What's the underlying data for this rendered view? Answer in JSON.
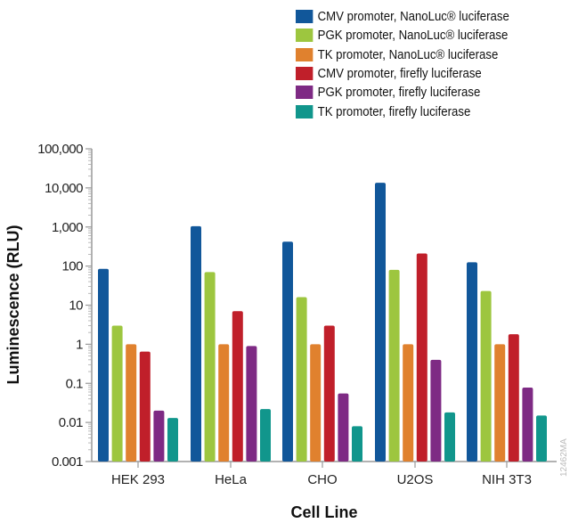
{
  "chart_data": {
    "type": "bar",
    "xlabel": "Cell Line",
    "ylabel": "Luminescence (RLU)",
    "yscale": "log",
    "ylim": [
      0.001,
      100000
    ],
    "yticks": [
      "0.001",
      "0.01",
      "0.1",
      "1",
      "10",
      "100",
      "1,000",
      "10,000",
      "100,000"
    ],
    "ytick_values": [
      0.001,
      0.01,
      0.1,
      1,
      10,
      100,
      1000,
      10000,
      100000
    ],
    "categories": [
      "HEK 293",
      "HeLa",
      "CHO",
      "U2OS",
      "NIH 3T3"
    ],
    "legend_position": "top-right",
    "grid": false,
    "series": [
      {
        "name": "CMV promoter, NanoLuc® luciferase",
        "color": "#11579a",
        "values": [
          85,
          1050,
          420,
          13500,
          125
        ]
      },
      {
        "name": "PGK promoter, NanoLuc® luciferase",
        "color": "#9dc63f",
        "values": [
          3,
          70,
          16,
          80,
          23
        ]
      },
      {
        "name": "TK promoter, NanoLuc® luciferase",
        "color": "#e0812e",
        "values": [
          1,
          1,
          1,
          1,
          1
        ]
      },
      {
        "name": "CMV promoter, firefly luciferase",
        "color": "#c01f2a",
        "values": [
          0.65,
          7,
          3,
          210,
          1.8
        ]
      },
      {
        "name": "PGK promoter, firefly luciferase",
        "color": "#7e2a84",
        "values": [
          0.02,
          0.9,
          0.055,
          0.4,
          0.078
        ]
      },
      {
        "name": "TK promoter, firefly luciferase",
        "color": "#11968c",
        "values": [
          0.013,
          0.022,
          0.008,
          0.018,
          0.015
        ]
      }
    ],
    "annotation": "12462MA"
  }
}
